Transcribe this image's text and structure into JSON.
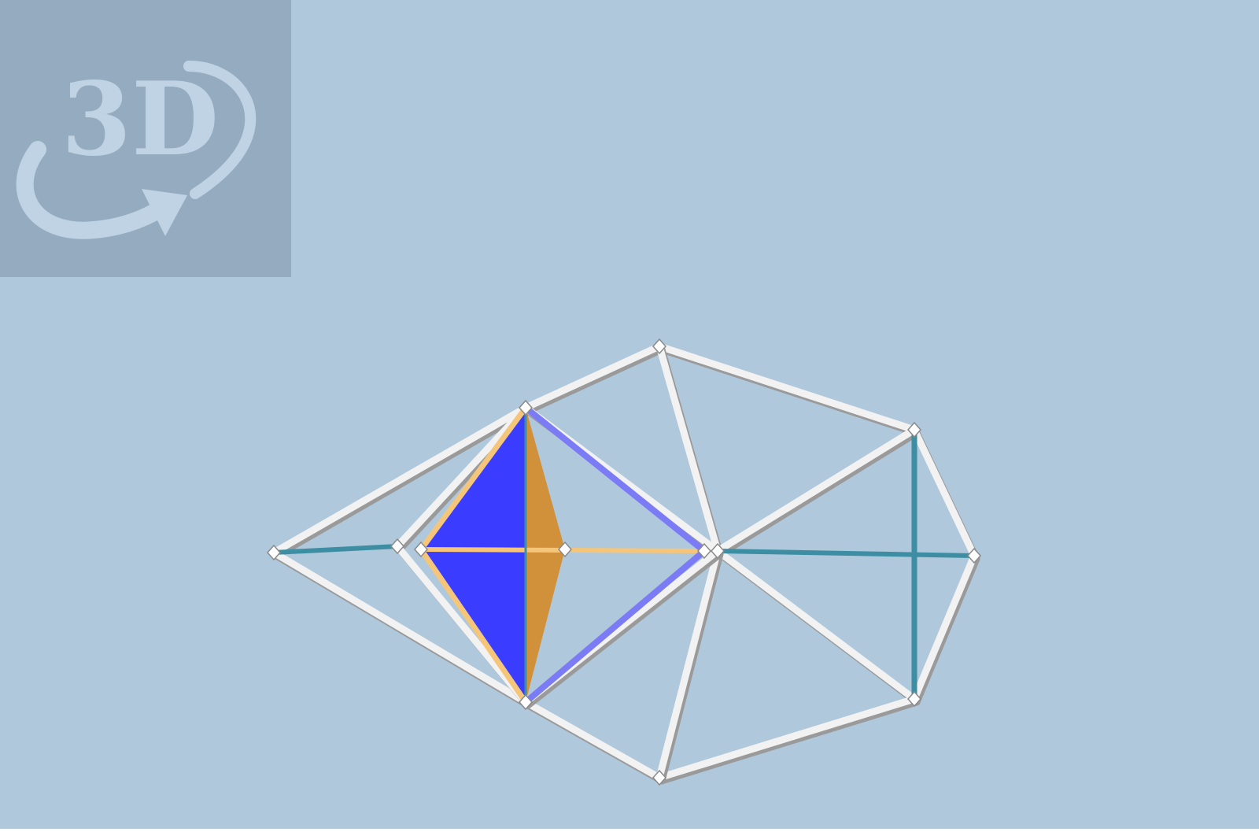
{
  "viewer": {
    "badge_label": "3D",
    "background_color": "#b0c8dc",
    "badge_panel_color": "#95abbf",
    "badge_glyph_color": "#bfd3e4"
  },
  "model": {
    "description_colors": {
      "frame": "#f2f2f2",
      "frame_shade": "#9a9a9a",
      "teal_rod": "#3d8ea2",
      "blue_face": "#3a3dff",
      "blue_rod": "#7b7cf5",
      "orange_face": "#d0913a",
      "orange_rod": "#f5c57a",
      "node": "#ffffff"
    }
  }
}
